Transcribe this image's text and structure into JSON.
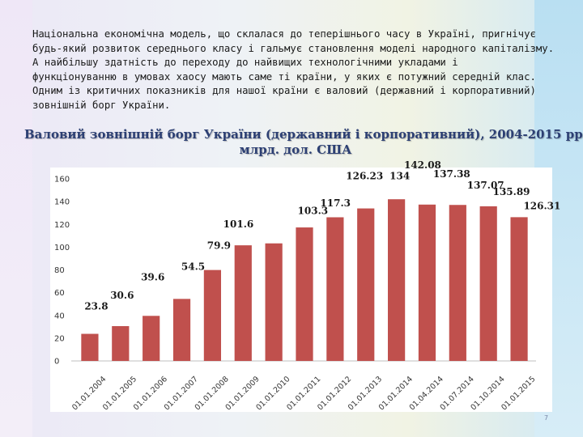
{
  "intro_lines": [
    "Національна економічна модель, що склалася до теперішнього часу в Україні, пригнічує",
    "будь-який розвиток середнього класу і гальмує становлення моделі народного капіталізму.",
    "А найбільшу здатність до переходу до найвищих технологічними укладами і",
    "функціонуванню в умовах хаосу мають саме ті країни, у яких є потужний середній клас.",
    "Одним із критичних показників для нашої країни є валовий (державний і корпоративний)",
    "зовнішній борг України."
  ],
  "chart_title_lines": [
    "Валовий зовнішній борг України (державний і корпоративний), 2004-2015 рр.",
    "млрд. дол. США"
  ],
  "chart_data": {
    "type": "bar",
    "title": "Валовий зовнішній борг України (державний і корпоративний), 2004-2015 рр., млрд. дол. США",
    "categories": [
      "01.01.2004",
      "01.01.2005",
      "01.01.2006",
      "01.01.2007",
      "01.01.2008",
      "01.01.2009",
      "01.01.2010",
      "01.01.2011",
      "01.01.2012",
      "01.01.2013",
      "01.01.2014",
      "01.04.2014",
      "01.07.2014",
      "01.10.2014",
      "01.01.2015"
    ],
    "values": [
      23.8,
      30.6,
      39.6,
      54.5,
      79.9,
      101.6,
      103.3,
      117.3,
      126.23,
      134,
      142.08,
      137.38,
      137.07,
      135.89,
      126.31
    ],
    "data_labels": [
      "23.8",
      "30.6",
      "39.6",
      "54.5",
      "79.9",
      "101.6",
      "103.3",
      "117.3",
      "126.23",
      "134",
      "142.08",
      "137.38",
      "137.07",
      "135.89",
      "126.31"
    ],
    "y_ticks": [
      "0",
      "20",
      "40",
      "60",
      "80",
      "100",
      "120",
      "140",
      "160"
    ],
    "ylim": [
      0,
      160
    ],
    "grid": false,
    "legend": false,
    "bar_color": "#c0504d"
  },
  "footer_mark": "7"
}
